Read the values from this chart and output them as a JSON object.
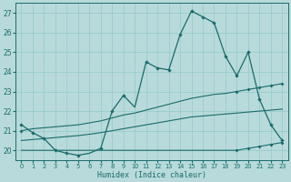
{
  "xlabel": "Humidex (Indice chaleur)",
  "ylabel": "",
  "bg_color": "#b8dada",
  "line_color": "#1a6b6b",
  "grid_color": "#99cccc",
  "xlim": [
    -0.5,
    23.5
  ],
  "ylim": [
    19.5,
    27.5
  ],
  "yticks": [
    20,
    21,
    22,
    23,
    24,
    25,
    26,
    27
  ],
  "xticks": [
    0,
    1,
    2,
    3,
    4,
    5,
    6,
    7,
    8,
    9,
    10,
    11,
    12,
    13,
    14,
    15,
    16,
    17,
    18,
    19,
    20,
    21,
    22,
    23
  ],
  "main_line": {
    "x": [
      0,
      1,
      2,
      3,
      4,
      5,
      6,
      7,
      8,
      9,
      10,
      11,
      12,
      13,
      14,
      15,
      16,
      17,
      18,
      19,
      20,
      21,
      22,
      23
    ],
    "y": [
      21.3,
      20.9,
      20.6,
      20.0,
      19.85,
      19.75,
      19.85,
      20.1,
      22.0,
      22.8,
      22.2,
      24.5,
      24.2,
      24.1,
      25.9,
      27.1,
      26.8,
      26.5,
      24.8,
      23.8,
      25.0,
      22.6,
      21.3,
      20.5
    ]
  },
  "min_line": {
    "x": [
      0,
      1,
      2,
      3,
      4,
      5,
      6,
      7,
      8,
      9,
      10,
      11,
      12,
      13,
      14,
      15,
      16,
      17,
      18,
      19,
      20,
      21,
      22,
      23
    ],
    "y": [
      20.0,
      20.0,
      20.0,
      20.0,
      20.0,
      20.0,
      20.0,
      20.0,
      20.0,
      20.0,
      20.0,
      20.0,
      20.0,
      20.0,
      20.0,
      20.0,
      20.0,
      20.0,
      20.0,
      20.0,
      20.1,
      20.2,
      20.3,
      20.4
    ]
  },
  "max_line": {
    "x": [
      0,
      1,
      2,
      3,
      4,
      5,
      6,
      7,
      8,
      9,
      10,
      11,
      12,
      13,
      14,
      15,
      16,
      17,
      18,
      19,
      20,
      21,
      22,
      23
    ],
    "y": [
      21.0,
      21.1,
      21.15,
      21.2,
      21.25,
      21.3,
      21.4,
      21.5,
      21.65,
      21.8,
      21.9,
      22.05,
      22.2,
      22.35,
      22.5,
      22.65,
      22.75,
      22.85,
      22.9,
      23.0,
      23.1,
      23.2,
      23.3,
      23.4
    ]
  },
  "avg_line": {
    "x": [
      0,
      1,
      2,
      3,
      4,
      5,
      6,
      7,
      8,
      9,
      10,
      11,
      12,
      13,
      14,
      15,
      16,
      17,
      18,
      19,
      20,
      21,
      22,
      23
    ],
    "y": [
      20.5,
      20.55,
      20.6,
      20.65,
      20.7,
      20.75,
      20.82,
      20.9,
      21.0,
      21.1,
      21.2,
      21.3,
      21.4,
      21.5,
      21.6,
      21.7,
      21.75,
      21.8,
      21.85,
      21.9,
      21.95,
      22.0,
      22.05,
      22.1
    ]
  },
  "main_markers": [
    0,
    1,
    2,
    3,
    4,
    5,
    7,
    8,
    9,
    11,
    12,
    13,
    14,
    15,
    16,
    17,
    18,
    19,
    20,
    21,
    22,
    23
  ],
  "min_markers": [
    19,
    20,
    21,
    22,
    23
  ],
  "max_markers": [
    0,
    19,
    20,
    21,
    22,
    23
  ],
  "avg_markers": []
}
